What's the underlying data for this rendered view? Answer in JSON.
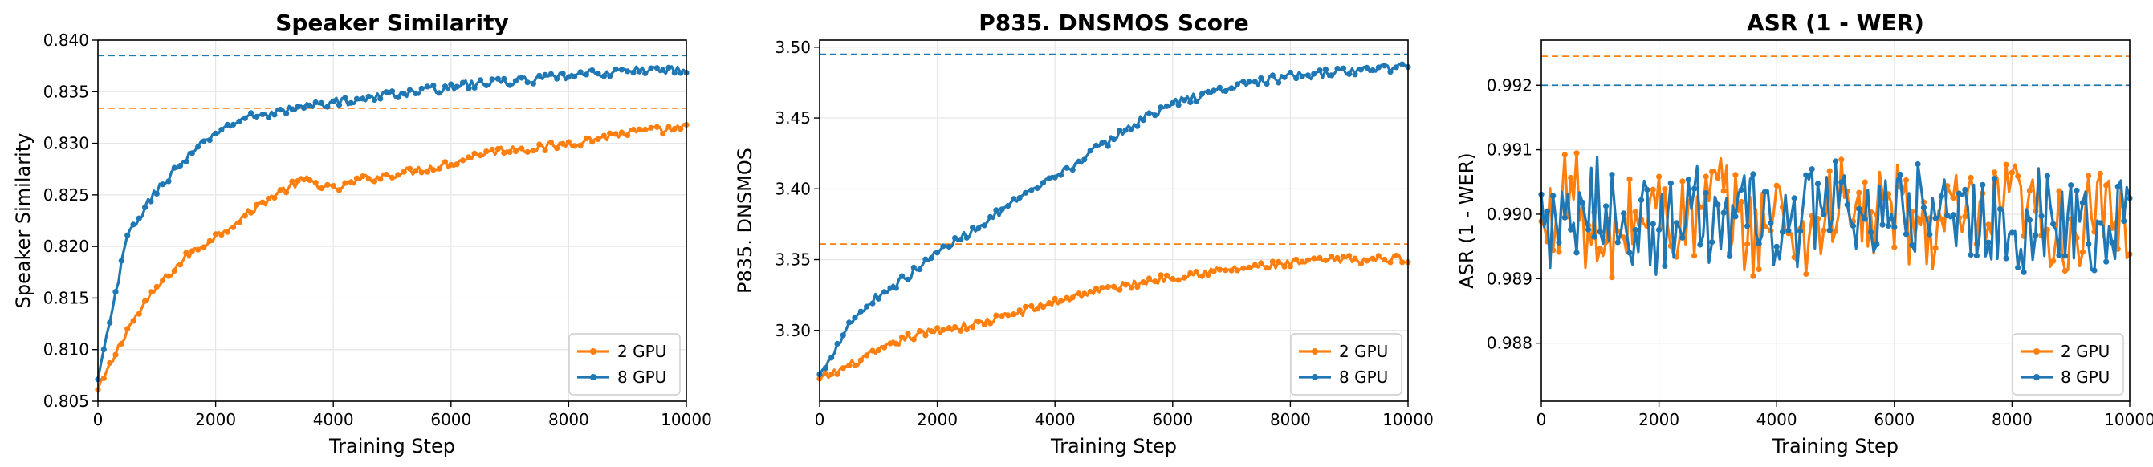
{
  "chart_data": [
    {
      "type": "line",
      "title": "Speaker Similarity",
      "xlabel": "Training Step",
      "ylabel": "Speaker Similarity",
      "xlim": [
        0,
        10000
      ],
      "ylim": [
        0.805,
        0.84
      ],
      "xticks": [
        "0",
        "2000",
        "4000",
        "6000",
        "8000",
        "10000"
      ],
      "yticks": [
        "0.805",
        "0.810",
        "0.815",
        "0.820",
        "0.825",
        "0.830",
        "0.835",
        "0.840"
      ],
      "grid": true,
      "legend": "lower-right",
      "series": [
        {
          "name": "2 GPU",
          "color": "#ff7f0e",
          "x": [
            0,
            500,
            1000,
            1500,
            2000,
            2500,
            3000,
            3500,
            4000,
            4500,
            5000,
            5500,
            6000,
            6500,
            7000,
            7500,
            8000,
            8500,
            9000,
            9500,
            10000
          ],
          "y": [
            0.806,
            0.812,
            0.816,
            0.819,
            0.821,
            0.823,
            0.825,
            0.8265,
            0.8255,
            0.8265,
            0.827,
            0.8275,
            0.828,
            0.829,
            0.8295,
            0.8295,
            0.83,
            0.8305,
            0.831,
            0.8312,
            0.8315
          ],
          "best": 0.8334
        },
        {
          "name": "8 GPU",
          "color": "#1f77b4",
          "x": [
            0,
            500,
            1000,
            1500,
            2000,
            2500,
            3000,
            3500,
            4000,
            4500,
            5000,
            5500,
            6000,
            6500,
            7000,
            7500,
            8000,
            8500,
            9000,
            9500,
            10000
          ],
          "y": [
            0.807,
            0.821,
            0.8255,
            0.8285,
            0.831,
            0.8325,
            0.833,
            0.8335,
            0.834,
            0.8342,
            0.8348,
            0.835,
            0.8355,
            0.8358,
            0.836,
            0.8362,
            0.8365,
            0.8368,
            0.837,
            0.8372,
            0.837
          ],
          "best": 0.8385
        }
      ]
    },
    {
      "type": "line",
      "title": "P835. DNSMOS Score",
      "xlabel": "Training Step",
      "ylabel": "P835. DNSMOS",
      "xlim": [
        0,
        10000
      ],
      "ylim": [
        3.25,
        3.505
      ],
      "xticks": [
        "0",
        "2000",
        "4000",
        "6000",
        "8000",
        "10000"
      ],
      "yticks": [
        "3.30",
        "3.35",
        "3.40",
        "3.45",
        "3.50"
      ],
      "grid": true,
      "legend": "lower-right",
      "series": [
        {
          "name": "2 GPU",
          "color": "#ff7f0e",
          "x": [
            0,
            500,
            1000,
            1500,
            2000,
            2500,
            3000,
            3500,
            4000,
            4500,
            5000,
            5500,
            6000,
            6500,
            7000,
            7500,
            8000,
            8500,
            9000,
            9500,
            10000
          ],
          "y": [
            3.265,
            3.275,
            3.285,
            3.295,
            3.3,
            3.303,
            3.308,
            3.314,
            3.32,
            3.326,
            3.33,
            3.334,
            3.338,
            3.341,
            3.343,
            3.345,
            3.347,
            3.349,
            3.35,
            3.35,
            3.351
          ],
          "best": 3.361
        },
        {
          "name": "8 GPU",
          "color": "#1f77b4",
          "x": [
            0,
            500,
            1000,
            1500,
            2000,
            2500,
            3000,
            3500,
            4000,
            4500,
            5000,
            5500,
            6000,
            6500,
            7000,
            7500,
            8000,
            8500,
            9000,
            9500,
            10000
          ],
          "y": [
            3.268,
            3.305,
            3.325,
            3.338,
            3.355,
            3.368,
            3.382,
            3.395,
            3.408,
            3.422,
            3.436,
            3.45,
            3.46,
            3.466,
            3.472,
            3.476,
            3.479,
            3.481,
            3.483,
            3.485,
            3.486
          ],
          "best": 3.495
        }
      ]
    },
    {
      "type": "line",
      "title": "ASR (1 - WER)",
      "xlabel": "Training Step",
      "ylabel": "ASR (1 - WER)",
      "xlim": [
        0,
        10000
      ],
      "ylim": [
        0.9871,
        0.9927
      ],
      "xticks": [
        "0",
        "2000",
        "4000",
        "6000",
        "8000",
        "10000"
      ],
      "yticks": [
        "0.988",
        "0.989",
        "0.990",
        "0.991",
        "0.992"
      ],
      "grid": true,
      "legend": "lower-right",
      "series": [
        {
          "name": "2 GPU",
          "color": "#ff7f0e",
          "x": [
            0,
            500,
            1000,
            1500,
            2000,
            2500,
            3000,
            3500,
            4000,
            4500,
            5000,
            5500,
            6000,
            6500,
            7000,
            7500,
            8000,
            8500,
            9000,
            9500,
            10000
          ],
          "y": [
            0.9896,
            0.9905,
            0.9892,
            0.9899,
            0.9901,
            0.9898,
            0.9903,
            0.9897,
            0.99,
            0.9896,
            0.9902,
            0.9899,
            0.9901,
            0.9897,
            0.99,
            0.9898,
            0.9902,
            0.9899,
            0.9897,
            0.99,
            0.9898
          ],
          "best": 0.99245
        },
        {
          "name": "8 GPU",
          "color": "#1f77b4",
          "x": [
            0,
            500,
            1000,
            1500,
            2000,
            2500,
            3000,
            3500,
            4000,
            4500,
            5000,
            5500,
            6000,
            6500,
            7000,
            7500,
            8000,
            8500,
            9000,
            9500,
            10000
          ],
          "y": [
            0.99,
            0.9896,
            0.9903,
            0.9899,
            0.9897,
            0.9902,
            0.9898,
            0.9901,
            0.9896,
            0.99,
            0.9903,
            0.9897,
            0.9899,
            0.9902,
            0.9898,
            0.99,
            0.9896,
            0.9901,
            0.9899,
            0.9897,
            0.99
          ],
          "best": 0.992
        }
      ]
    }
  ]
}
